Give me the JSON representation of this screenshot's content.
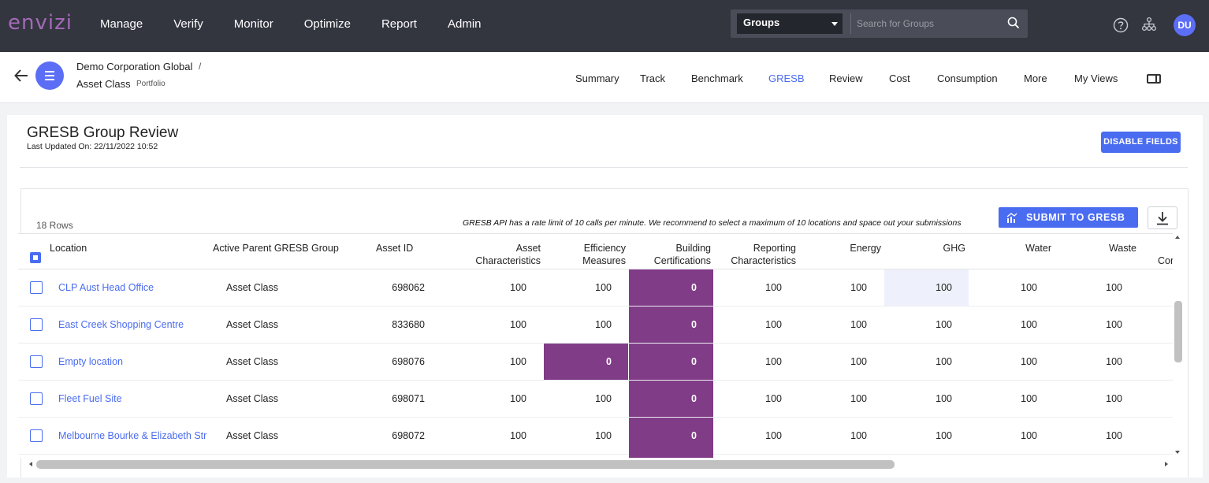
{
  "brand": {
    "logo": "envizi"
  },
  "main_nav": [
    "Manage",
    "Verify",
    "Monitor",
    "Optimize",
    "Report",
    "Admin"
  ],
  "search": {
    "scope": "Groups",
    "placeholder": "Search for Groups"
  },
  "user": {
    "initials": "DU"
  },
  "breadcrumb": {
    "org": "Demo Corporation Global",
    "separator": "/",
    "group": "Asset Class",
    "group_type": "Portfolio"
  },
  "sub_nav": [
    {
      "label": "Summary",
      "active": false
    },
    {
      "label": "Track",
      "active": false
    },
    {
      "label": "Benchmark",
      "active": false
    },
    {
      "label": "GRESB",
      "active": true
    },
    {
      "label": "Review",
      "active": false
    },
    {
      "label": "Cost",
      "active": false
    },
    {
      "label": "Consumption",
      "active": false
    },
    {
      "label": "More",
      "active": false
    },
    {
      "label": "My Views",
      "active": false
    }
  ],
  "page": {
    "title": "GRESB Group Review",
    "last_updated": "Last Updated On: 22/11/2022 10:52",
    "disable_fields_label": "DISABLE FIELDS"
  },
  "toolbar": {
    "rows_count": "18 Rows",
    "rate_note": "GRESB API has a rate limit of 10 calls per minute. We recommend to select a maximum of 10 locations and space out your submissions",
    "submit_label": "SUBMIT TO GRESB"
  },
  "table": {
    "headers": {
      "location": "Location",
      "parent_group": "Active Parent GRESB Group",
      "asset_id": "Asset ID",
      "asset_char_1": "Asset",
      "asset_char_2": "Characteristics",
      "efficiency_1": "Efficiency",
      "efficiency_2": "Measures",
      "building_1": "Building",
      "building_2": "Certifications",
      "reporting_1": "Reporting",
      "reporting_2": "Characteristics",
      "energy": "Energy",
      "ghg": "GHG",
      "water": "Water",
      "waste": "Waste",
      "cut_col": "Cor"
    },
    "rows": [
      {
        "location": "CLP Aust Head Office",
        "group": "Asset Class",
        "asset_id": "698062",
        "asset_char": "100",
        "efficiency": "100",
        "building": "0",
        "reporting": "100",
        "energy": "100",
        "ghg": "100",
        "water": "100",
        "waste": "100"
      },
      {
        "location": "East Creek Shopping Centre",
        "group": "Asset Class",
        "asset_id": "833680",
        "asset_char": "100",
        "efficiency": "100",
        "building": "0",
        "reporting": "100",
        "energy": "100",
        "ghg": "100",
        "water": "100",
        "waste": "100"
      },
      {
        "location": "Empty location",
        "group": "Asset Class",
        "asset_id": "698076",
        "asset_char": "100",
        "efficiency": "0",
        "building": "0",
        "reporting": "100",
        "energy": "100",
        "ghg": "100",
        "water": "100",
        "waste": "100"
      },
      {
        "location": "Fleet Fuel Site",
        "group": "Asset Class",
        "asset_id": "698071",
        "asset_char": "100",
        "efficiency": "100",
        "building": "0",
        "reporting": "100",
        "energy": "100",
        "ghg": "100",
        "water": "100",
        "waste": "100"
      },
      {
        "location": "Melbourne Bourke & Elizabeth Str",
        "group": "Asset Class",
        "asset_id": "698072",
        "asset_char": "100",
        "efficiency": "100",
        "building": "0",
        "reporting": "100",
        "energy": "100",
        "ghg": "100",
        "water": "100",
        "waste": "100"
      }
    ]
  },
  "colors": {
    "accent": "#4a6cf0",
    "highlight": "#813c87",
    "topbar": "#33353f"
  }
}
